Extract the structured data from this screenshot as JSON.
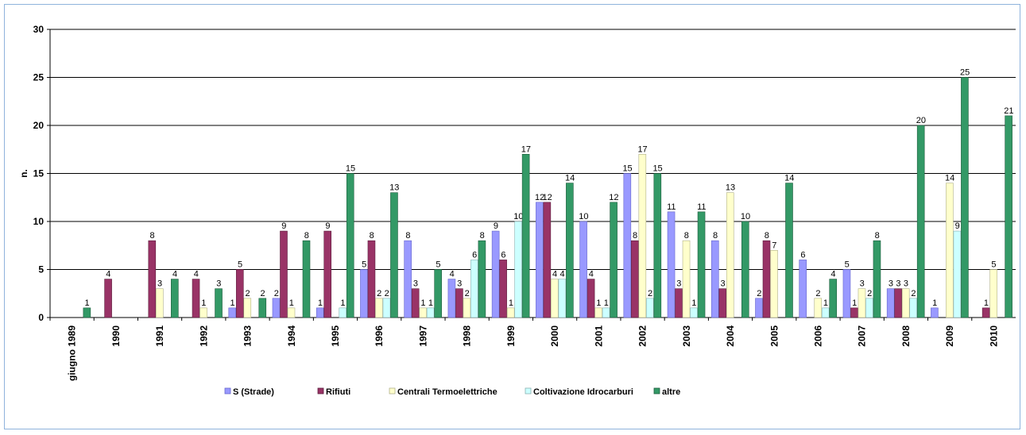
{
  "chart_data": {
    "type": "bar",
    "ylabel": "n.",
    "ylim": [
      0,
      30
    ],
    "yticks": [
      0,
      5,
      10,
      15,
      20,
      25,
      30
    ],
    "grid": true,
    "legend_position": "bottom",
    "categories": [
      "giugno 1989",
      "1990",
      "1991",
      "1992",
      "1993",
      "1994",
      "1995",
      "1996",
      "1997",
      "1998",
      "1999",
      "2000",
      "2001",
      "2002",
      "2003",
      "2004",
      "2005",
      "2006",
      "2007",
      "2008",
      "2009",
      "2010"
    ],
    "series": [
      {
        "name": "S (Strade)",
        "color": "#9999ff",
        "values": [
          0,
          0,
          0,
          0,
          1,
          2,
          1,
          5,
          8,
          4,
          9,
          12,
          10,
          15,
          11,
          8,
          2,
          6,
          5,
          3,
          1,
          0
        ]
      },
      {
        "name": "Rifiuti",
        "color": "#993366",
        "values": [
          0,
          4,
          8,
          4,
          5,
          9,
          9,
          8,
          3,
          3,
          6,
          12,
          4,
          8,
          3,
          3,
          8,
          0,
          1,
          3,
          0,
          1
        ]
      },
      {
        "name": "Centrali Termoelettriche",
        "color": "#ffffcc",
        "values": [
          0,
          0,
          3,
          1,
          2,
          1,
          0,
          2,
          1,
          2,
          1,
          4,
          1,
          17,
          8,
          13,
          7,
          2,
          3,
          3,
          14,
          5
        ]
      },
      {
        "name": "Coltivazione Idrocarburi",
        "color": "#ccffff",
        "values": [
          0,
          0,
          0,
          0,
          0,
          0,
          1,
          2,
          1,
          6,
          10,
          4,
          1,
          2,
          1,
          0,
          0,
          1,
          2,
          2,
          9,
          0
        ]
      },
      {
        "name": "altre",
        "color": "#339966",
        "values": [
          1,
          0,
          4,
          3,
          2,
          8,
          15,
          13,
          5,
          8,
          17,
          14,
          12,
          15,
          11,
          10,
          14,
          4,
          8,
          20,
          25,
          21
        ]
      }
    ]
  }
}
